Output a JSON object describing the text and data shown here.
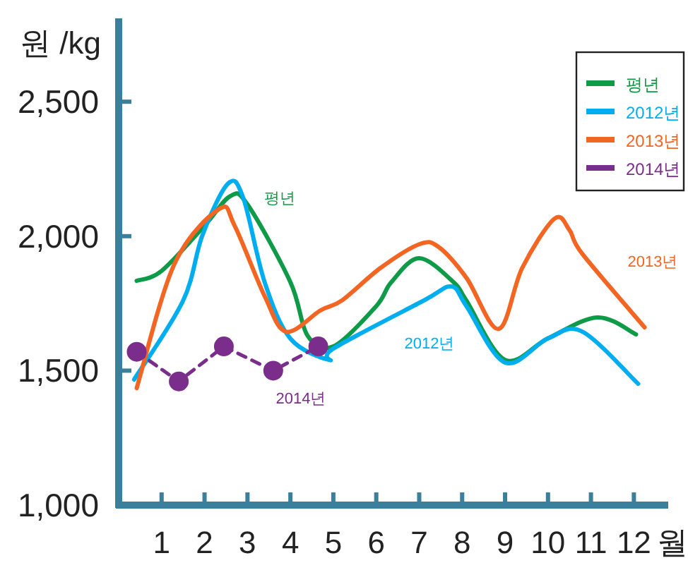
{
  "chart_data": {
    "type": "line",
    "ylabel": "원 /kg",
    "xlabel": "월",
    "xlim": [
      0,
      12.8
    ],
    "ylim": [
      1000,
      2810
    ],
    "xticks": [
      1,
      2,
      3,
      4,
      5,
      6,
      7,
      8,
      9,
      10,
      11,
      12
    ],
    "yticks": [
      {
        "value": 1000,
        "label": "1,000"
      },
      {
        "value": 1500,
        "label": "1,500"
      },
      {
        "value": 2000,
        "label": "2,000"
      },
      {
        "value": 2500,
        "label": "2,500"
      }
    ],
    "grid": false,
    "legend": "top right",
    "marker": "none",
    "line_style": "solid",
    "series": [
      {
        "name": "평년",
        "color": "#0f9a48",
        "x": [
          0.42,
          1.0,
          2.0,
          2.6,
          3.0,
          4.0,
          4.4,
          5.0,
          6.0,
          6.35,
          7.0,
          7.8,
          8.1,
          9.0,
          10.0,
          11.15,
          12.05
        ],
        "values": [
          1834,
          1871,
          2039,
          2149,
          2118,
          1829,
          1630,
          1590,
          1740,
          1829,
          1918,
          1829,
          1760,
          1540,
          1620,
          1698,
          1635
        ]
      },
      {
        "name": "2012년",
        "color": "#00aeef",
        "x": [
          0.36,
          1.5,
          1.95,
          2.55,
          2.9,
          3.4,
          4.0,
          4.9,
          5.0,
          7.1,
          7.75,
          8.1,
          9.0,
          10.0,
          10.8,
          12.1
        ],
        "values": [
          1467,
          1760,
          2003,
          2196,
          2143,
          1829,
          1619,
          1540,
          1582,
          1760,
          1813,
          1740,
          1530,
          1620,
          1645,
          1451
        ]
      },
      {
        "name": "2013년",
        "color": "#f26522",
        "x": [
          0.42,
          1.3,
          2.35,
          2.7,
          3.4,
          3.9,
          4.7,
          5.2,
          6.1,
          7.0,
          7.45,
          8.1,
          8.85,
          9.4,
          10.15,
          10.5,
          10.8,
          12.25
        ],
        "values": [
          1435,
          1897,
          2102,
          2039,
          1777,
          1645,
          1724,
          1761,
          1882,
          1970,
          1960,
          1845,
          1655,
          1882,
          2065,
          2023,
          1934,
          1661
        ]
      },
      {
        "name": "2014년",
        "color": "#7b2d8b",
        "marker": "circle",
        "line_style": "dashed",
        "x": [
          0.42,
          1.4,
          2.45,
          3.6,
          4.65
        ],
        "values": [
          1570,
          1460,
          1590,
          1500,
          1590
        ]
      }
    ],
    "annotations": [
      "평년",
      "2012년",
      "2013년",
      "2014년"
    ]
  }
}
